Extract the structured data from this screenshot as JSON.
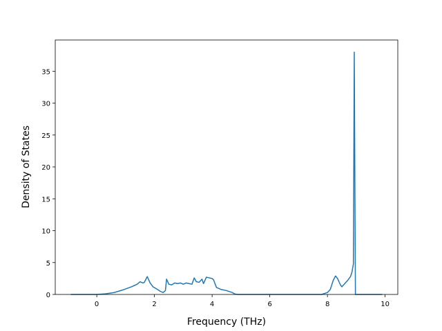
{
  "chart_data": {
    "type": "line",
    "xlabel": "Frequency (THz)",
    "ylabel": "Density of States",
    "x": [
      -0.9,
      0,
      0.3,
      0.6,
      0.9,
      1.2,
      1.4,
      1.5,
      1.6,
      1.65,
      1.75,
      1.85,
      1.95,
      2.1,
      2.2,
      2.3,
      2.38,
      2.42,
      2.5,
      2.6,
      2.7,
      2.8,
      2.9,
      3.0,
      3.1,
      3.2,
      3.3,
      3.38,
      3.45,
      3.55,
      3.65,
      3.7,
      3.8,
      3.9,
      4.0,
      4.05,
      4.15,
      4.3,
      4.5,
      4.7,
      4.8,
      4.9,
      7.8,
      8.0,
      8.1,
      8.2,
      8.28,
      8.35,
      8.45,
      8.5,
      8.6,
      8.7,
      8.8,
      8.85,
      8.9,
      8.93,
      8.97,
      9.9
    ],
    "series": [
      {
        "color": "#1f77b4",
        "values": [
          0,
          0,
          0.1,
          0.3,
          0.7,
          1.2,
          1.6,
          2.0,
          1.8,
          1.9,
          2.8,
          1.8,
          1.2,
          0.8,
          0.5,
          0.3,
          0.6,
          2.4,
          1.6,
          1.5,
          1.8,
          1.7,
          1.8,
          1.6,
          1.8,
          1.7,
          1.6,
          2.6,
          2.0,
          1.9,
          2.4,
          1.7,
          2.7,
          2.6,
          2.5,
          2.3,
          1.1,
          0.8,
          0.6,
          0.3,
          0.05,
          0,
          0,
          0.3,
          0.8,
          2.2,
          2.9,
          2.5,
          1.5,
          1.2,
          1.7,
          2.2,
          2.8,
          3.5,
          4.8,
          38,
          0,
          0
        ]
      }
    ],
    "xlim": [
      -1.44,
      10.44
    ],
    "ylim": [
      0,
      39.9
    ],
    "xticks": [
      0,
      2,
      4,
      6,
      8,
      10
    ],
    "yticks": [
      0,
      5,
      10,
      15,
      20,
      25,
      30,
      35
    ]
  }
}
